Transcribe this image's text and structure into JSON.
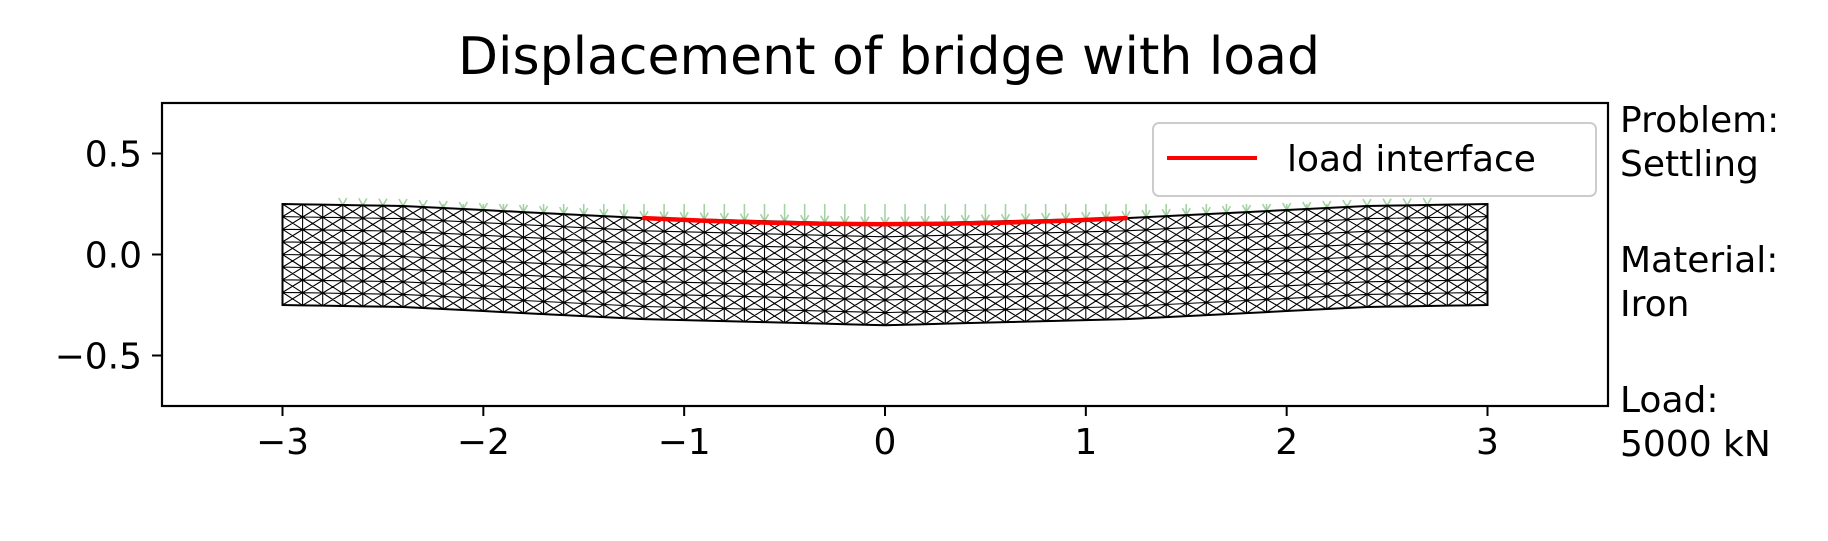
{
  "chart_data": {
    "type": "mesh",
    "title": "Displacement of bridge with load",
    "xlim": [
      -3.6,
      3.6
    ],
    "ylim": [
      -0.75,
      0.75
    ],
    "xticks": [
      -3,
      -2,
      -1,
      0,
      1,
      2,
      3
    ],
    "xtick_labels": [
      "−3",
      "−2",
      "−1",
      "0",
      "1",
      "2",
      "3"
    ],
    "yticks": [
      0.5,
      0.0,
      -0.5
    ],
    "ytick_labels": [
      "0.5",
      "0.0",
      "−0.5"
    ],
    "grid": false,
    "legend": {
      "location": "top-right",
      "entries": [
        {
          "label": "load interface",
          "color": "#ff0000"
        }
      ]
    },
    "mesh": {
      "x_range": [
        -3,
        3
      ],
      "columns": 60,
      "rows": 8,
      "top_profile": {
        "x": [
          -3.0,
          -2.4,
          -1.2,
          0.0,
          1.2,
          2.4,
          3.0
        ],
        "y": [
          0.25,
          0.24,
          0.18,
          0.15,
          0.18,
          0.24,
          0.25
        ]
      },
      "bottom_profile": {
        "x": [
          -3.0,
          -2.4,
          -1.2,
          0.0,
          1.2,
          2.4,
          3.0
        ],
        "y": [
          -0.25,
          -0.26,
          -0.32,
          -0.35,
          -0.32,
          -0.26,
          -0.25
        ]
      },
      "line_color": "#000000",
      "undeformed_y": [
        -0.25,
        0.25
      ],
      "displacement_arrow_color": "#7fbf7f"
    },
    "load_interface": {
      "x": [
        -1.2,
        -0.9,
        -0.6,
        -0.3,
        0.0,
        0.3,
        0.6,
        0.9,
        1.2
      ],
      "y": [
        0.18,
        0.167,
        0.158,
        0.152,
        0.15,
        0.152,
        0.158,
        0.167,
        0.18
      ],
      "color": "#ff0000"
    }
  },
  "annotations": {
    "problem": "Problem:\nSettling",
    "material": "Material:\nIron",
    "load": "Load:\n5000 kN"
  }
}
